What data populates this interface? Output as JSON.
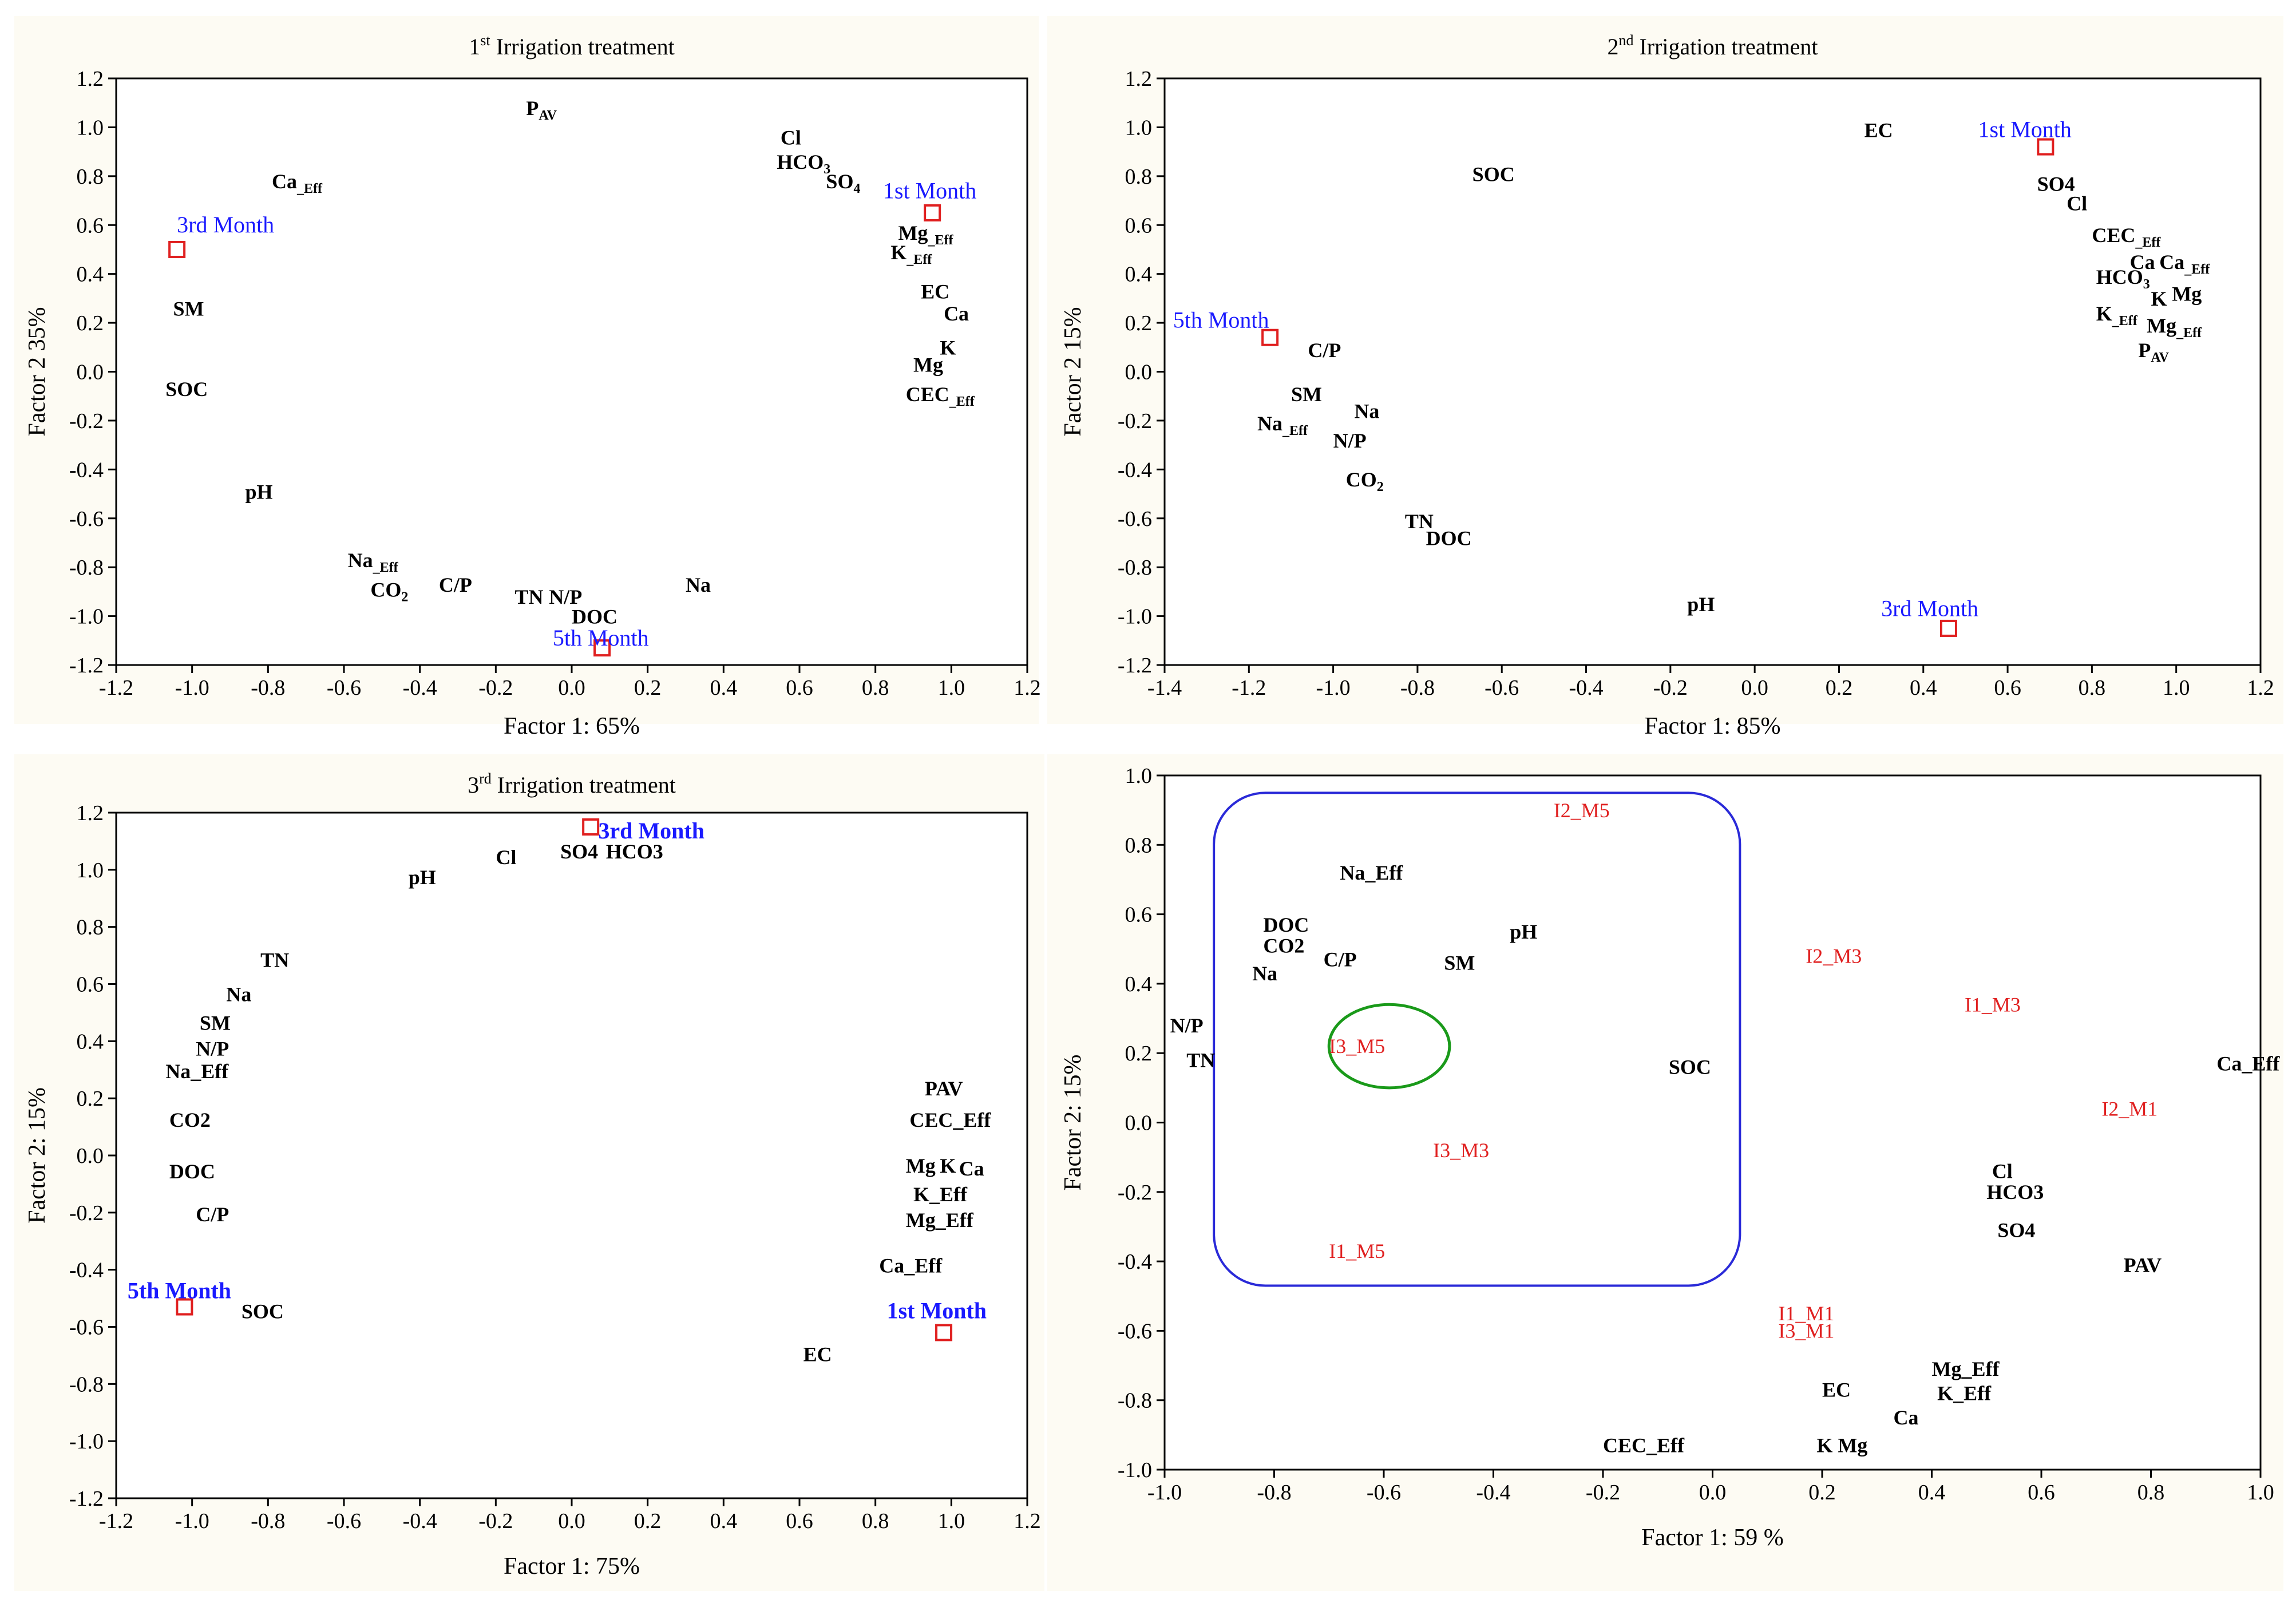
{
  "colors": {
    "panel_bg": "#fdfbf3",
    "plot_bg": "#ffffff",
    "axis": "#000000",
    "sample_blue": "#1a1aff",
    "sample_red": "#e02020",
    "marker": "#e02020",
    "blue_box": "#2a2ad8",
    "green_ellipse": "#1a9a1a"
  },
  "chart_data": [
    {
      "type": "scatter",
      "title": "1st Irrigation treatment",
      "title_parts": [
        "1",
        "st",
        " Irrigation treatment"
      ],
      "xlabel": "Factor 1: 65%",
      "ylabel": "Factor 2 35%",
      "xlim": [
        -1.2,
        1.2
      ],
      "ylim": [
        -1.2,
        1.2
      ],
      "xticks": [
        "-1.2",
        "-1.0",
        "-0.8",
        "-0.6",
        "-0.4",
        "-0.2",
        "0.0",
        "0.2",
        "0.4",
        "0.6",
        "0.8",
        "1.0",
        "1.2"
      ],
      "yticks": [
        "-1.2",
        "-1.0",
        "-0.8",
        "-0.6",
        "-0.4",
        "-0.2",
        "0.0",
        "0.2",
        "0.4",
        "0.6",
        "0.8",
        "1.0",
        "1.2"
      ],
      "variables": [
        {
          "label": "P",
          "sub": "AV",
          "x": -0.12,
          "y": 1.05
        },
        {
          "label": "Cl",
          "x": 0.55,
          "y": 0.93
        },
        {
          "label": "HCO",
          "sub": "3",
          "x": 0.54,
          "y": 0.83
        },
        {
          "label": "SO",
          "sub": "4",
          "x": 0.67,
          "y": 0.75
        },
        {
          "label": "Ca",
          "sub": "_Eff",
          "x": -0.79,
          "y": 0.75
        },
        {
          "label": "Mg",
          "sub": "_Eff",
          "x": 0.86,
          "y": 0.54
        },
        {
          "label": "K",
          "sub": "_Eff",
          "x": 0.84,
          "y": 0.46
        },
        {
          "label": "SM",
          "x": -1.05,
          "y": 0.23
        },
        {
          "label": "EC",
          "x": 0.92,
          "y": 0.3
        },
        {
          "label": "Ca",
          "x": 0.98,
          "y": 0.21
        },
        {
          "label": "K",
          "x": 0.97,
          "y": 0.07
        },
        {
          "label": "Mg",
          "x": 0.9,
          "y": 0.0
        },
        {
          "label": "SOC",
          "x": -1.07,
          "y": -0.1
        },
        {
          "label": "CEC",
          "sub": "_Eff",
          "x": 0.88,
          "y": -0.12
        },
        {
          "label": "pH",
          "x": -0.86,
          "y": -0.52
        },
        {
          "label": "Na",
          "sub": "_Eff",
          "x": -0.59,
          "y": -0.8
        },
        {
          "label": "CO",
          "sub": "2",
          "x": -0.53,
          "y": -0.92
        },
        {
          "label": "C/P",
          "x": -0.35,
          "y": -0.9
        },
        {
          "label": "TN",
          "x": -0.15,
          "y": -0.95
        },
        {
          "label": "N/P",
          "x": -0.06,
          "y": -0.95
        },
        {
          "label": "DOC",
          "x": 0.0,
          "y": -1.03
        },
        {
          "label": "Na",
          "x": 0.3,
          "y": -0.9
        }
      ],
      "samples": [
        {
          "label": "1st Month",
          "x": 0.95,
          "y": 0.65,
          "lx": 0.82,
          "ly": 0.71
        },
        {
          "label": "3rd Month",
          "x": -1.04,
          "y": 0.5,
          "lx": -1.04,
          "ly": 0.57
        },
        {
          "label": "5th Month",
          "x": 0.08,
          "y": -1.13,
          "lx": -0.05,
          "ly": -1.12
        }
      ]
    },
    {
      "type": "scatter",
      "title": "2nd Irrigation treatment",
      "title_parts": [
        "2",
        "nd",
        " Irrigation treatment"
      ],
      "xlabel": "Factor 1: 85%",
      "ylabel": "Factor 2 15%",
      "xlim": [
        -1.4,
        1.2
      ],
      "ylim": [
        -1.2,
        1.2
      ],
      "xticks": [
        "-1.4",
        "-1.2",
        "-1.0",
        "-0.8",
        "-0.6",
        "-0.4",
        "-0.2",
        "0.0",
        "0.2",
        "0.4",
        "0.6",
        "0.8",
        "1.0",
        "1.2"
      ],
      "yticks": [
        "-1.2",
        "-1.0",
        "-0.8",
        "-0.6",
        "-0.4",
        "-0.2",
        "0.0",
        "0.2",
        "0.4",
        "0.6",
        "0.8",
        "1.0",
        "1.2"
      ],
      "variables": [
        {
          "label": "EC",
          "x": 0.26,
          "y": 0.96
        },
        {
          "label": "SOC",
          "x": -0.67,
          "y": 0.78
        },
        {
          "label": "SO4",
          "x": 0.67,
          "y": 0.74
        },
        {
          "label": "Cl",
          "x": 0.74,
          "y": 0.66
        },
        {
          "label": "CEC",
          "sub": "_Eff",
          "x": 0.8,
          "y": 0.53
        },
        {
          "label": "Ca",
          "x": 0.89,
          "y": 0.42
        },
        {
          "label": "Ca",
          "sub": "_Eff",
          "x": 0.96,
          "y": 0.42
        },
        {
          "label": "HCO",
          "sub": "3",
          "x": 0.81,
          "y": 0.36
        },
        {
          "label": "K",
          "x": 0.94,
          "y": 0.27
        },
        {
          "label": "Mg",
          "x": 0.99,
          "y": 0.29
        },
        {
          "label": "K",
          "sub": "_Eff",
          "x": 0.81,
          "y": 0.21
        },
        {
          "label": "Mg",
          "sub": "_Eff",
          "x": 0.93,
          "y": 0.16
        },
        {
          "label": "P",
          "sub": "AV",
          "x": 0.91,
          "y": 0.06
        },
        {
          "label": "C/P",
          "x": -1.06,
          "y": 0.06
        },
        {
          "label": "SM",
          "x": -1.1,
          "y": -0.12
        },
        {
          "label": "Na",
          "x": -0.95,
          "y": -0.19
        },
        {
          "label": "Na",
          "sub": "_Eff",
          "x": -1.18,
          "y": -0.24
        },
        {
          "label": "N/P",
          "x": -1.0,
          "y": -0.31
        },
        {
          "label": "CO",
          "sub": "2",
          "x": -0.97,
          "y": -0.47
        },
        {
          "label": "TN",
          "x": -0.83,
          "y": -0.64
        },
        {
          "label": "DOC",
          "x": -0.78,
          "y": -0.71
        },
        {
          "label": "pH",
          "x": -0.16,
          "y": -0.98
        }
      ],
      "samples": [
        {
          "label": "1st Month",
          "x": 0.69,
          "y": 0.92,
          "lx": 0.53,
          "ly": 0.96
        },
        {
          "label": "5th Month",
          "x": -1.15,
          "y": 0.14,
          "lx": -1.38,
          "ly": 0.18
        },
        {
          "label": "3rd Month",
          "x": 0.46,
          "y": -1.05,
          "lx": 0.3,
          "ly": -1.0
        }
      ]
    },
    {
      "type": "scatter",
      "title": "3rd Irrigation treatment",
      "title_parts": [
        "3",
        "rd",
        " Irrigation treatment"
      ],
      "xlabel": "Factor 1: 75%",
      "ylabel": "Factor 2: 15%",
      "xlim": [
        -1.2,
        1.2
      ],
      "ylim": [
        -1.2,
        1.2
      ],
      "xticks": [
        "-1.2",
        "-1.0",
        "-0.8",
        "-0.6",
        "-0.4",
        "-0.2",
        "0.0",
        "0.2",
        "0.4",
        "0.6",
        "0.8",
        "1.0",
        "1.2"
      ],
      "yticks": [
        "-1.2",
        "-1.0",
        "-0.8",
        "-0.6",
        "-0.4",
        "-0.2",
        "0.0",
        "0.2",
        "0.4",
        "0.6",
        "0.8",
        "1.0",
        "1.2"
      ],
      "variables": [
        {
          "label": "pH",
          "x": -0.43,
          "y": 0.95
        },
        {
          "label": "Cl",
          "x": -0.2,
          "y": 1.02
        },
        {
          "label": "SO4",
          "x": -0.03,
          "y": 1.04
        },
        {
          "label": "HCO3",
          "x": 0.09,
          "y": 1.04
        },
        {
          "label": "TN",
          "x": -0.82,
          "y": 0.66
        },
        {
          "label": "Na",
          "x": -0.91,
          "y": 0.54
        },
        {
          "label": "SM",
          "x": -0.98,
          "y": 0.44
        },
        {
          "label": "N/P",
          "x": -0.99,
          "y": 0.35
        },
        {
          "label": "Na_Eff",
          "x": -1.07,
          "y": 0.27
        },
        {
          "label": "CO2",
          "x": -1.06,
          "y": 0.1
        },
        {
          "label": "DOC",
          "x": -1.06,
          "y": -0.08
        },
        {
          "label": "C/P",
          "x": -0.99,
          "y": -0.23
        },
        {
          "label": "SOC",
          "x": -0.87,
          "y": -0.57
        },
        {
          "label": "PAV",
          "x": 0.93,
          "y": 0.21
        },
        {
          "label": "CEC_Eff",
          "x": 0.89,
          "y": 0.1
        },
        {
          "label": "Mg",
          "x": 0.88,
          "y": -0.06
        },
        {
          "label": "K",
          "x": 0.97,
          "y": -0.06
        },
        {
          "label": "Ca",
          "x": 1.02,
          "y": -0.07
        },
        {
          "label": "K_Eff",
          "x": 0.9,
          "y": -0.16
        },
        {
          "label": "Mg_Eff",
          "x": 0.88,
          "y": -0.25
        },
        {
          "label": "Ca_Eff",
          "x": 0.81,
          "y": -0.41
        },
        {
          "label": "EC",
          "x": 0.61,
          "y": -0.72
        }
      ],
      "samples": [
        {
          "label": "3rd Month",
          "x": 0.05,
          "y": 1.15,
          "lx": 0.07,
          "ly": 1.11
        },
        {
          "label": "5th Month",
          "x": -1.02,
          "y": -0.53,
          "lx": -1.17,
          "ly": -0.5
        },
        {
          "label": "1st Month",
          "x": 0.98,
          "y": -0.62,
          "lx": 0.83,
          "ly": -0.57
        }
      ]
    },
    {
      "type": "scatter",
      "title": "",
      "xlabel": "Factor 1: 59 %",
      "ylabel": "Factor 2: 15%",
      "xlim": [
        -1.0,
        1.0
      ],
      "ylim": [
        -1.0,
        1.0
      ],
      "xticks": [
        "-1.0",
        "-0.8",
        "-0.6",
        "-0.4",
        "-0.2",
        "0.0",
        "0.2",
        "0.4",
        "0.6",
        "0.8",
        "1.0"
      ],
      "yticks": [
        "-1.0",
        "-0.8",
        "-0.6",
        "-0.4",
        "-0.2",
        "0.0",
        "0.2",
        "0.4",
        "0.6",
        "0.8",
        "1.0"
      ],
      "variables": [
        {
          "label": "Na_Eff",
          "x": -0.68,
          "y": 0.7
        },
        {
          "label": "pH",
          "x": -0.37,
          "y": 0.53
        },
        {
          "label": "DOC",
          "x": -0.82,
          "y": 0.55
        },
        {
          "label": "CO2",
          "x": -0.82,
          "y": 0.49
        },
        {
          "label": "C/P",
          "x": -0.71,
          "y": 0.45
        },
        {
          "label": "SM",
          "x": -0.49,
          "y": 0.44
        },
        {
          "label": "Na",
          "x": -0.84,
          "y": 0.41
        },
        {
          "label": "N/P",
          "x": -0.99,
          "y": 0.26
        },
        {
          "label": "TN",
          "x": -0.96,
          "y": 0.16
        },
        {
          "label": "SOC",
          "x": -0.08,
          "y": 0.14
        },
        {
          "label": "Ca_Eff",
          "x": 0.92,
          "y": 0.15
        },
        {
          "label": "Cl",
          "x": 0.51,
          "y": -0.16
        },
        {
          "label": "HCO3",
          "x": 0.5,
          "y": -0.22
        },
        {
          "label": "SO4",
          "x": 0.52,
          "y": -0.33
        },
        {
          "label": "PAV",
          "x": 0.75,
          "y": -0.43
        },
        {
          "label": "Mg_Eff",
          "x": 0.4,
          "y": -0.73
        },
        {
          "label": "K_Eff",
          "x": 0.41,
          "y": -0.8
        },
        {
          "label": "EC",
          "x": 0.2,
          "y": -0.79
        },
        {
          "label": "Ca",
          "x": 0.33,
          "y": -0.87
        },
        {
          "label": "K Mg",
          "x": 0.19,
          "y": -0.95
        },
        {
          "label": "CEC_Eff",
          "x": -0.2,
          "y": -0.95
        }
      ],
      "samples": [
        {
          "label": "I2_M5",
          "x": -0.29,
          "y": 0.88
        },
        {
          "label": "I2_M3",
          "x": 0.17,
          "y": 0.46
        },
        {
          "label": "I1_M3",
          "x": 0.46,
          "y": 0.32
        },
        {
          "label": "I3_M5",
          "x": -0.7,
          "y": 0.2
        },
        {
          "label": "I2_M1",
          "x": 0.71,
          "y": 0.02
        },
        {
          "label": "I3_M3",
          "x": -0.51,
          "y": -0.1
        },
        {
          "label": "I1_M5",
          "x": -0.7,
          "y": -0.39
        },
        {
          "label": "I1_M1",
          "x": 0.12,
          "y": -0.57
        },
        {
          "label": "I3_M1",
          "x": 0.12,
          "y": -0.62
        }
      ],
      "annotations": [
        {
          "kind": "rounded-box",
          "label": "blue-cluster-box",
          "x0": -0.91,
          "x1": 0.05,
          "y0": -0.47,
          "y1": 0.95
        },
        {
          "kind": "ellipse",
          "label": "green-cluster-ellipse",
          "cx": -0.59,
          "cy": 0.22,
          "rx": 0.11,
          "ry": 0.12
        }
      ]
    }
  ]
}
